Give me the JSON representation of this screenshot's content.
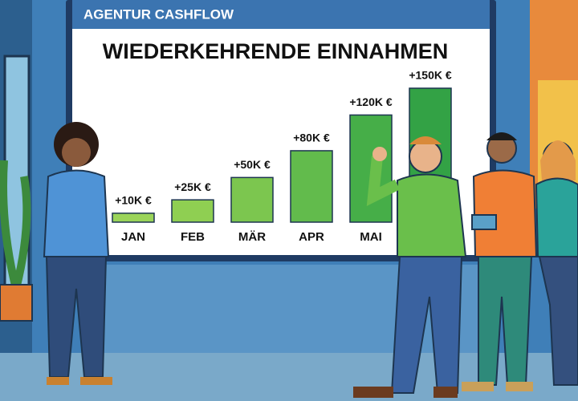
{
  "board_label": "AGENTUR CASHFLOW",
  "chart_data": {
    "type": "bar",
    "title": "WIEDERKEHRENDE EINNAHMEN",
    "categories": [
      "JAN",
      "FEB",
      "MÄR",
      "APR",
      "MAI",
      null
    ],
    "values": [
      10,
      25,
      50,
      80,
      120,
      150
    ],
    "value_labels": [
      "+10K €",
      "+25K €",
      "+50K €",
      "+80K €",
      "+120K €",
      "+150K €"
    ],
    "colors": [
      "#9ad45a",
      "#8fcf52",
      "#7cc64f",
      "#62bb4c",
      "#46ae48",
      "#33a245"
    ]
  }
}
